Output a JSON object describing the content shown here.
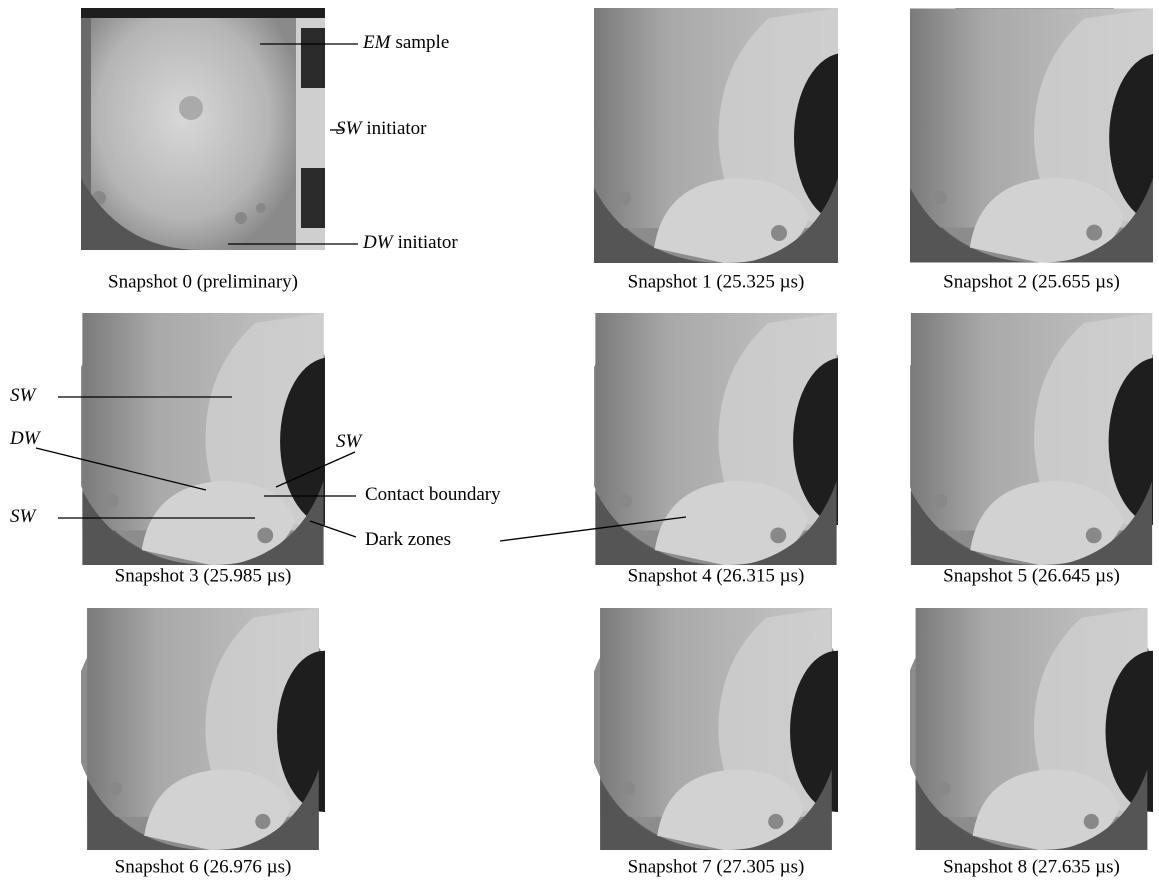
{
  "snapshots": [
    "Snapshot 0 (preliminary)",
    "Snapshot 1 (25.325 µs)",
    "Snapshot 2 (25.655 µs)",
    "Snapshot 3 (25.985 µs)",
    "Snapshot 4 (26.315 µs)",
    "Snapshot 5 (26.645 µs)",
    "Snapshot 6 (26.976 µs)",
    "Snapshot 7 (27.305 µs)",
    "Snapshot 8 (27.635 µs)"
  ],
  "annotations": [
    {
      "italic": "EM",
      "text": "sample"
    },
    {
      "italic": "SW",
      "text": "initiator"
    },
    {
      "italic": "DW",
      "text": "initiator"
    },
    {
      "italic": "SW"
    },
    {
      "italic": "DW"
    },
    {
      "italic": "SW"
    },
    {
      "text": "Contact boundary"
    },
    {
      "italic": "SW"
    },
    {
      "text": "Dark zones"
    }
  ]
}
